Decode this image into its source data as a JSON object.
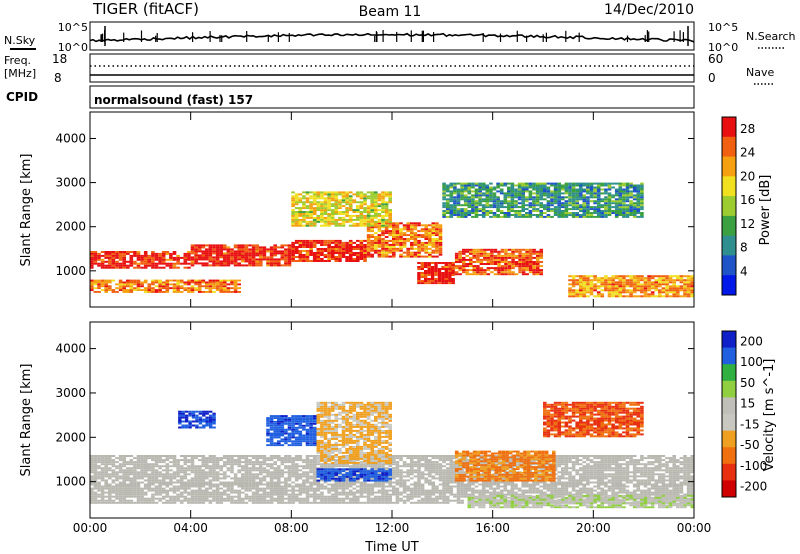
{
  "header": {
    "radar": "TIGER (fitACF)",
    "beam": "Beam 11",
    "date": "14/Dec/2010"
  },
  "strip_noise": {
    "left_label": "N.Sky",
    "right_label": "N.Search",
    "left_ticks": [
      "10^5",
      "10^0"
    ],
    "right_ticks": [
      "10^5",
      "10^0"
    ]
  },
  "strip_freq": {
    "left_label_1": "Freq.",
    "left_label_2": "[MHz]",
    "right_label": "Nave",
    "left_ticks": [
      "18",
      "8"
    ],
    "right_ticks": [
      "60",
      "0"
    ]
  },
  "cpid": {
    "label": "CPID",
    "value": "normalsound (fast) 157"
  },
  "colors": {
    "power_scale": [
      "#0018e8",
      "#1f54c8",
      "#2f8f8f",
      "#3aa040",
      "#9ccc30",
      "#f0e020",
      "#f4a010",
      "#f06010",
      "#e81010"
    ],
    "velocity_scale": [
      "#1020c8",
      "#2060e0",
      "#30b040",
      "#90d040",
      "#c0c0b8",
      "#c8c8c0",
      "#f0a020",
      "#f07010",
      "#e83010",
      "#d00000"
    ],
    "ground_scatter": "#b8b8b0"
  },
  "chart_data": [
    {
      "type": "heatmap",
      "title": "",
      "xlabel": "Time UT",
      "ylabel": "Slant Range [km]",
      "xlim": [
        0,
        24
      ],
      "ylim": [
        180,
        4600
      ],
      "x_ticks": [
        "00:00",
        "04:00",
        "08:00",
        "12:00",
        "16:00",
        "20:00",
        "00:00"
      ],
      "y_ticks": [
        1000,
        2000,
        3000,
        4000
      ],
      "colorbar": {
        "label": "Power [dB]",
        "ticks": [
          4,
          8,
          12,
          16,
          20,
          24,
          28
        ],
        "range": [
          0,
          30
        ]
      },
      "bands": [
        {
          "x": [
            0,
            4
          ],
          "range_km": [
            1050,
            1450
          ],
          "value": 28
        },
        {
          "x": [
            4,
            8
          ],
          "range_km": [
            1100,
            1600
          ],
          "value": 28
        },
        {
          "x": [
            8,
            11
          ],
          "range_km": [
            1200,
            1700
          ],
          "value": 28
        },
        {
          "x": [
            11,
            14
          ],
          "range_km": [
            1300,
            2100
          ],
          "value": 24
        },
        {
          "x": [
            13,
            14.5
          ],
          "range_km": [
            700,
            1200
          ],
          "value": 28
        },
        {
          "x": [
            14.5,
            18
          ],
          "range_km": [
            900,
            1500
          ],
          "value": 26
        },
        {
          "x": [
            0,
            6
          ],
          "range_km": [
            500,
            800
          ],
          "value": 24
        },
        {
          "x": [
            19,
            24
          ],
          "range_km": [
            400,
            900
          ],
          "value": 22
        },
        {
          "x": [
            8,
            12
          ],
          "range_km": [
            2000,
            2800
          ],
          "value": 18
        },
        {
          "x": [
            14,
            22
          ],
          "range_km": [
            2200,
            3000
          ],
          "value": 10
        }
      ]
    },
    {
      "type": "heatmap",
      "title": "",
      "xlabel": "Time UT",
      "ylabel": "Slant Range [km]",
      "xlim": [
        0,
        24
      ],
      "ylim": [
        180,
        4600
      ],
      "x_ticks": [
        "00:00",
        "04:00",
        "08:00",
        "12:00",
        "16:00",
        "20:00",
        "00:00"
      ],
      "y_ticks": [
        1000,
        2000,
        3000,
        4000
      ],
      "colorbar": {
        "label": "Velocity [m s^-1]",
        "ticks": [
          200,
          100,
          50,
          15,
          -15,
          -50,
          -100,
          -200
        ],
        "range": [
          -250,
          250
        ]
      },
      "bands": [
        {
          "x": [
            0,
            24
          ],
          "range_km": [
            500,
            1600
          ],
          "value": 0,
          "ground_scatter": true
        },
        {
          "x": [
            7,
            9
          ],
          "range_km": [
            1800,
            2500
          ],
          "value": 180
        },
        {
          "x": [
            3.5,
            5
          ],
          "range_km": [
            2200,
            2600
          ],
          "value": 200
        },
        {
          "x": [
            9,
            12
          ],
          "range_km": [
            1400,
            2800
          ],
          "value": -60
        },
        {
          "x": [
            14.5,
            18.5
          ],
          "range_km": [
            1000,
            1700
          ],
          "value": -110
        },
        {
          "x": [
            18,
            22
          ],
          "range_km": [
            2000,
            2800
          ],
          "value": -150
        },
        {
          "x": [
            9,
            12
          ],
          "range_km": [
            1000,
            1300
          ],
          "value": 190
        },
        {
          "x": [
            15,
            24
          ],
          "range_km": [
            400,
            700
          ],
          "value": 40
        }
      ]
    }
  ]
}
